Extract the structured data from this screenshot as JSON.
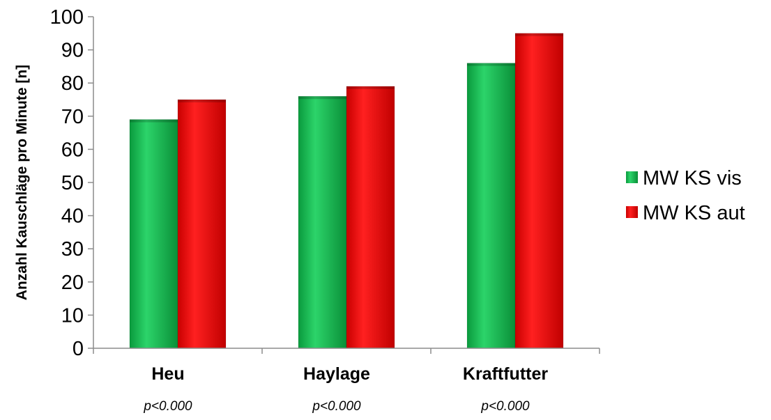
{
  "chart_data": {
    "type": "bar",
    "categories": [
      "Heu",
      "Haylage",
      "Kraftfutter"
    ],
    "category_notes": [
      "p<0.000",
      "p<0.000",
      "p<0.000"
    ],
    "series": [
      {
        "name": "MW KS vis",
        "values": [
          69,
          76,
          86
        ],
        "color": "#11b84e"
      },
      {
        "name": "MW KS aut",
        "values": [
          75,
          79,
          95
        ],
        "color": "#ee0000"
      }
    ],
    "ylabel": "Anzahl Kauschläge pro Minute [n]",
    "xlabel": "",
    "ylim": [
      0,
      100
    ],
    "yticks": [
      "0",
      "10",
      "20",
      "30",
      "40",
      "50",
      "60",
      "70",
      "80",
      "90",
      "100"
    ],
    "legend_position": "right",
    "grid": false
  }
}
